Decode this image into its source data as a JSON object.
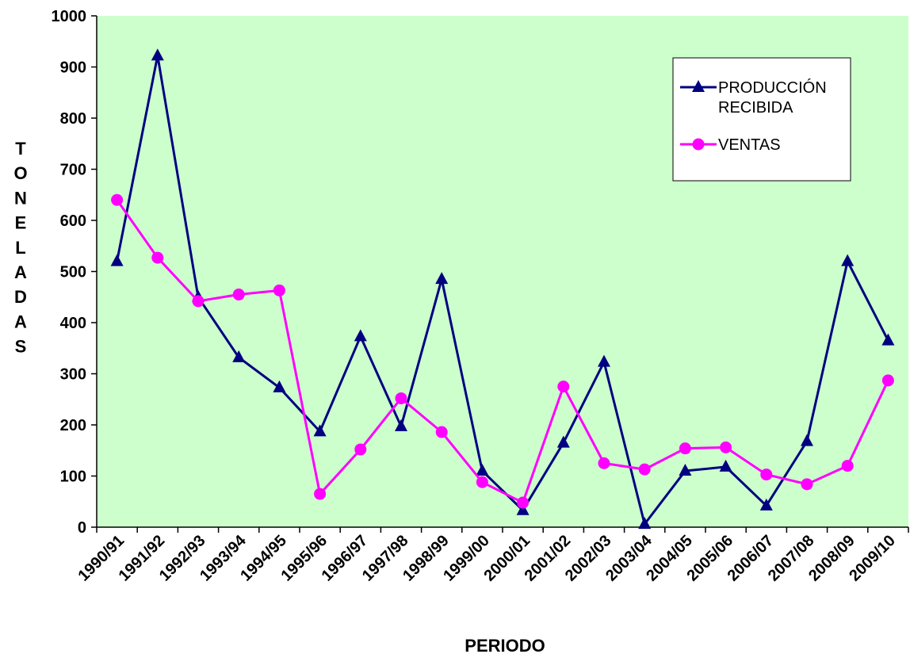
{
  "chart_data": {
    "type": "line",
    "title": "",
    "xlabel": "PERIODO",
    "ylabel": "TONELADAS",
    "ylim": [
      0,
      1000
    ],
    "yticks": [
      0,
      100,
      200,
      300,
      400,
      500,
      600,
      700,
      800,
      900,
      1000
    ],
    "grid": false,
    "legend_position": "top-right",
    "plot_background": "#ccffcc",
    "categories": [
      "1990/91",
      "1991/92",
      "1992/93",
      "1993/94",
      "1994/95",
      "1995/96",
      "1996/97",
      "1997/98",
      "1998/99",
      "1999/00",
      "2000/01",
      "2001/02",
      "2002/03",
      "2003/04",
      "2004/05",
      "2005/06",
      "2006/07",
      "2007/08",
      "2008/09",
      "2009/10"
    ],
    "series": [
      {
        "name": "PRODUCCIÓN RECIBIDA",
        "legend_lines": [
          "PRODUCCIÓN",
          "RECIBIDA"
        ],
        "color": "#000080",
        "marker": "triangle",
        "values": [
          520,
          922,
          450,
          332,
          273,
          187,
          373,
          197,
          485,
          110,
          33,
          165,
          323,
          6,
          110,
          118,
          42,
          168,
          520,
          365
        ]
      },
      {
        "name": "VENTAS",
        "legend_lines": [
          "VENTAS"
        ],
        "color": "#ff00ff",
        "marker": "circle",
        "values": [
          640,
          527,
          442,
          455,
          463,
          65,
          152,
          252,
          186,
          88,
          48,
          275,
          125,
          113,
          154,
          156,
          103,
          84,
          120,
          287
        ]
      }
    ]
  }
}
